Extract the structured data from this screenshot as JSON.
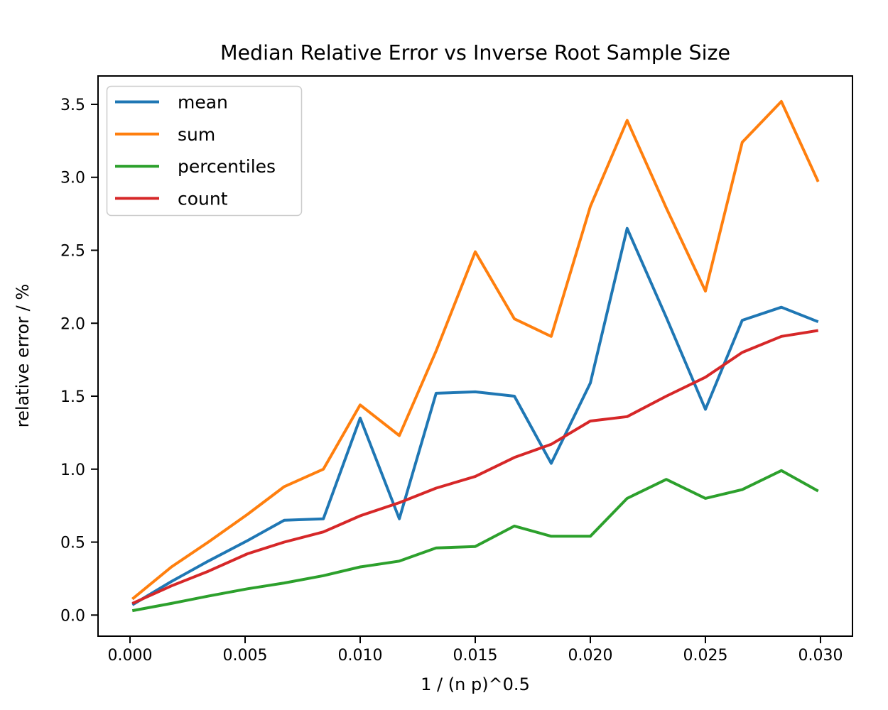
{
  "chart_data": {
    "type": "line",
    "title": "Median Relative Error vs Inverse Root Sample Size",
    "xlabel": "1 / (n p)^0.5",
    "ylabel": "relative error / %",
    "grid": false,
    "legend_position": "upper left",
    "xlim": [
      -0.00139,
      0.03139
    ],
    "ylim": [
      -0.1445,
      3.6945
    ],
    "xticks": {
      "values": [
        0.0,
        0.005,
        0.01,
        0.015,
        0.02,
        0.025,
        0.03
      ],
      "labels": [
        "0.000",
        "0.005",
        "0.010",
        "0.015",
        "0.020",
        "0.025",
        "0.030"
      ]
    },
    "yticks": {
      "values": [
        0.0,
        0.5,
        1.0,
        1.5,
        2.0,
        2.5,
        3.0,
        3.5
      ],
      "labels": [
        "0.0",
        "0.5",
        "1.0",
        "1.5",
        "2.0",
        "2.5",
        "3.0",
        "3.5"
      ]
    },
    "x": [
      0.0001,
      0.0018,
      0.0034,
      0.0051,
      0.0067,
      0.0084,
      0.01,
      0.0117,
      0.0133,
      0.015,
      0.0167,
      0.0183,
      0.02,
      0.0216,
      0.0233,
      0.025,
      0.0266,
      0.0283,
      0.0299
    ],
    "series": [
      {
        "name": "mean",
        "color": "#1f77b4",
        "values": [
          0.07,
          0.23,
          0.37,
          0.51,
          0.65,
          0.66,
          1.35,
          0.66,
          1.52,
          1.53,
          1.5,
          1.04,
          1.59,
          2.65,
          2.04,
          1.41,
          2.02,
          2.11,
          2.01
        ]
      },
      {
        "name": "sum",
        "color": "#ff7f0e",
        "values": [
          0.11,
          0.33,
          0.5,
          0.69,
          0.88,
          1.0,
          1.44,
          1.23,
          1.81,
          2.49,
          2.03,
          1.91,
          2.8,
          3.39,
          2.79,
          2.22,
          3.24,
          3.52,
          2.97
        ]
      },
      {
        "name": "percentiles",
        "color": "#2ca02c",
        "values": [
          0.03,
          0.08,
          0.13,
          0.18,
          0.22,
          0.27,
          0.33,
          0.37,
          0.46,
          0.47,
          0.61,
          0.54,
          0.54,
          0.8,
          0.93,
          0.8,
          0.86,
          0.99,
          0.85
        ]
      },
      {
        "name": "count",
        "color": "#d62728",
        "values": [
          0.08,
          0.2,
          0.3,
          0.42,
          0.5,
          0.57,
          0.68,
          0.77,
          0.87,
          0.95,
          1.08,
          1.17,
          1.33,
          1.36,
          1.5,
          1.63,
          1.8,
          1.91,
          1.95
        ]
      }
    ]
  }
}
